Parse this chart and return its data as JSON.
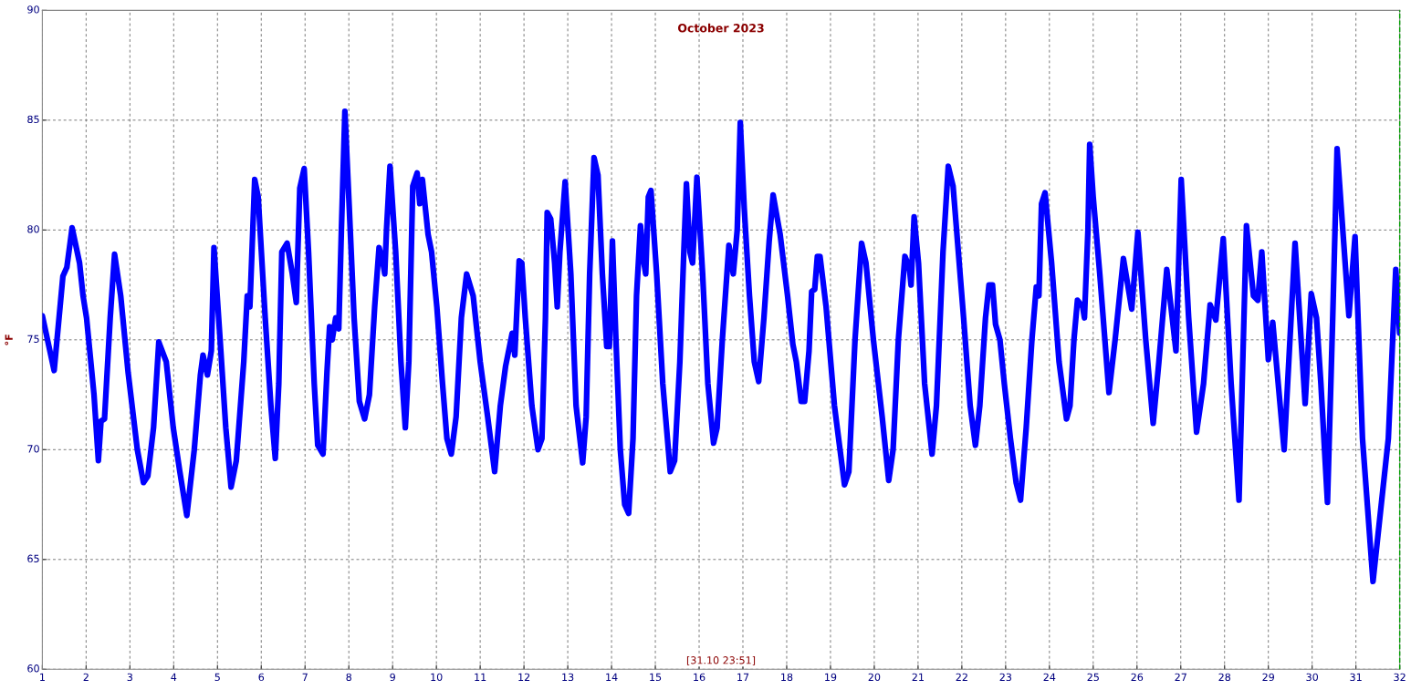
{
  "chart_data": {
    "type": "line",
    "title": "October 2023",
    "ylabel": "°F",
    "annotations": [
      "[31.10 23:51]"
    ],
    "xlim": [
      1,
      32
    ],
    "xticks": [
      1,
      2,
      3,
      4,
      5,
      6,
      7,
      8,
      9,
      10,
      11,
      12,
      13,
      14,
      15,
      16,
      17,
      18,
      19,
      20,
      21,
      22,
      23,
      24,
      25,
      26,
      27,
      28,
      29,
      30,
      31,
      32
    ],
    "ylim": [
      60,
      90
    ],
    "yticks": [
      60,
      65,
      70,
      75,
      80,
      85,
      90
    ],
    "grid": true,
    "marker": "none",
    "line_style": "solid",
    "ref_lines": [
      {
        "axis": "x",
        "value": 32,
        "color": "#00a000",
        "line_style": "dashed"
      }
    ],
    "series": [
      {
        "color": "#0000ff",
        "x": [
          1.0,
          1.27,
          1.47,
          1.56,
          1.68,
          1.85,
          1.93,
          2.01,
          2.18,
          2.28,
          2.34,
          2.42,
          2.55,
          2.65,
          2.79,
          2.96,
          3.17,
          3.31,
          3.41,
          3.54,
          3.66,
          3.83,
          3.99,
          4.14,
          4.3,
          4.47,
          4.61,
          4.67,
          4.77,
          4.86,
          4.92,
          5.06,
          5.19,
          5.31,
          5.43,
          5.6,
          5.68,
          5.74,
          5.85,
          5.93,
          6.09,
          6.22,
          6.32,
          6.4,
          6.47,
          6.59,
          6.71,
          6.8,
          6.88,
          6.98,
          7.08,
          7.21,
          7.29,
          7.41,
          7.5,
          7.56,
          7.62,
          7.7,
          7.77,
          7.83,
          7.91,
          8.01,
          8.12,
          8.24,
          8.36,
          8.47,
          8.59,
          8.69,
          8.78,
          8.82,
          8.86,
          8.94,
          9.07,
          9.19,
          9.29,
          9.37,
          9.46,
          9.56,
          9.62,
          9.68,
          9.81,
          9.89,
          10.01,
          10.14,
          10.24,
          10.34,
          10.45,
          10.57,
          10.69,
          10.84,
          11.0,
          11.17,
          11.33,
          11.46,
          11.58,
          11.73,
          11.79,
          11.89,
          11.95,
          12.03,
          12.18,
          12.32,
          12.41,
          12.49,
          12.53,
          12.61,
          12.7,
          12.76,
          12.82,
          12.94,
          13.07,
          13.19,
          13.34,
          13.42,
          13.5,
          13.6,
          13.69,
          13.79,
          13.89,
          13.95,
          14.02,
          14.1,
          14.2,
          14.3,
          14.39,
          14.49,
          14.57,
          14.66,
          14.74,
          14.78,
          14.84,
          14.9,
          15.03,
          15.17,
          15.34,
          15.44,
          15.56,
          15.65,
          15.71,
          15.79,
          15.85,
          15.95,
          16.08,
          16.2,
          16.33,
          16.41,
          16.53,
          16.68,
          16.78,
          16.87,
          16.94,
          17.03,
          17.15,
          17.26,
          17.36,
          17.48,
          17.6,
          17.69,
          17.85,
          18.02,
          18.14,
          18.22,
          18.33,
          18.41,
          18.51,
          18.57,
          18.64,
          18.7,
          18.76,
          18.9,
          19.09,
          19.32,
          19.42,
          19.56,
          19.71,
          19.81,
          19.98,
          20.18,
          20.33,
          20.43,
          20.55,
          20.7,
          20.8,
          20.84,
          20.91,
          21.01,
          21.15,
          21.32,
          21.42,
          21.57,
          21.69,
          21.8,
          21.9,
          22.04,
          22.19,
          22.31,
          22.41,
          22.54,
          22.62,
          22.7,
          22.77,
          22.87,
          22.97,
          23.11,
          23.24,
          23.34,
          23.47,
          23.6,
          23.7,
          23.76,
          23.82,
          23.9,
          24.05,
          24.22,
          24.39,
          24.47,
          24.56,
          24.64,
          24.76,
          24.8,
          24.88,
          24.92,
          25.0,
          25.15,
          25.36,
          25.5,
          25.69,
          25.88,
          26.02,
          26.2,
          26.37,
          26.5,
          26.68,
          26.89,
          27.01,
          27.18,
          27.36,
          27.52,
          27.67,
          27.8,
          27.97,
          28.15,
          28.33,
          28.5,
          28.66,
          28.76,
          28.85,
          29.0,
          29.1,
          29.36,
          29.61,
          29.84,
          29.98,
          30.1,
          30.2,
          30.35,
          30.47,
          30.57,
          30.7,
          30.84,
          30.98,
          31.15,
          31.39,
          31.74,
          31.91,
          32.0
        ],
        "values": [
          76.1,
          73.6,
          77.9,
          78.3,
          80.1,
          78.5,
          77,
          76,
          72.5,
          69.5,
          71.3,
          71.4,
          76,
          78.9,
          77,
          73.5,
          70,
          68.5,
          68.8,
          71,
          74.9,
          74,
          71,
          69,
          67,
          70,
          73.4,
          74.3,
          73.4,
          74.5,
          79.2,
          75,
          71,
          68.3,
          69.5,
          74,
          77,
          76.5,
          82.3,
          81.5,
          76,
          72,
          69.6,
          73,
          79,
          79.4,
          78,
          76.7,
          81.9,
          82.8,
          79,
          73,
          70.2,
          69.8,
          73.5,
          75.6,
          75,
          76,
          75.5,
          80,
          85.4,
          81,
          76,
          72.2,
          71.4,
          72.5,
          76.5,
          79.2,
          78.5,
          78,
          80,
          82.9,
          79,
          74,
          71,
          74,
          82,
          82.6,
          81.2,
          82.3,
          79.8,
          79,
          76.5,
          73,
          70.5,
          69.8,
          71.5,
          76,
          78,
          77,
          74,
          71.5,
          69,
          72,
          73.8,
          75.3,
          74.3,
          78.6,
          78.5,
          76,
          72,
          70,
          70.5,
          76,
          80.8,
          80.5,
          78.5,
          76.5,
          79,
          82.2,
          78,
          72,
          69.4,
          71.5,
          78,
          83.3,
          82.5,
          78,
          74.7,
          74.7,
          79.5,
          75,
          70,
          67.5,
          67.1,
          70.5,
          77,
          80.2,
          78.5,
          78,
          81.5,
          81.8,
          78,
          73,
          69,
          69.5,
          74,
          79,
          82.1,
          79,
          78.5,
          82.4,
          78,
          73,
          70.3,
          71,
          75,
          79.3,
          78,
          80,
          84.9,
          81,
          77,
          74,
          73.1,
          76,
          79.5,
          81.6,
          79.8,
          77,
          74.8,
          74,
          72.2,
          72.2,
          74.5,
          77.2,
          77.3,
          78.8,
          78.8,
          76.5,
          72,
          68.4,
          69,
          75,
          79.4,
          78.5,
          75,
          71.5,
          68.6,
          70,
          75,
          78.8,
          78.3,
          77.5,
          80.6,
          78.5,
          73,
          69.8,
          72,
          79,
          82.9,
          82,
          79.5,
          76,
          72,
          70.2,
          72,
          76,
          77.5,
          77.5,
          75.7,
          75,
          73,
          70.5,
          68.5,
          67.7,
          71,
          75,
          77.4,
          77,
          81.2,
          81.7,
          78.5,
          74,
          71.4,
          72,
          75,
          76.8,
          76.5,
          76,
          80,
          83.9,
          81.5,
          78,
          72.6,
          75,
          78.7,
          76.4,
          79.9,
          75,
          71.2,
          74,
          78.2,
          74.5,
          82.3,
          76,
          70.8,
          73,
          76.6,
          75.9,
          79.6,
          73,
          67.7,
          80.2,
          77,
          76.8,
          79,
          74.1,
          75.8,
          70,
          79.4,
          72.1,
          77.1,
          76,
          73,
          67.6,
          76,
          83.7,
          80,
          76.1,
          79.7,
          70.5,
          64,
          70.5,
          78.2,
          75.3
        ]
      }
    ]
  }
}
